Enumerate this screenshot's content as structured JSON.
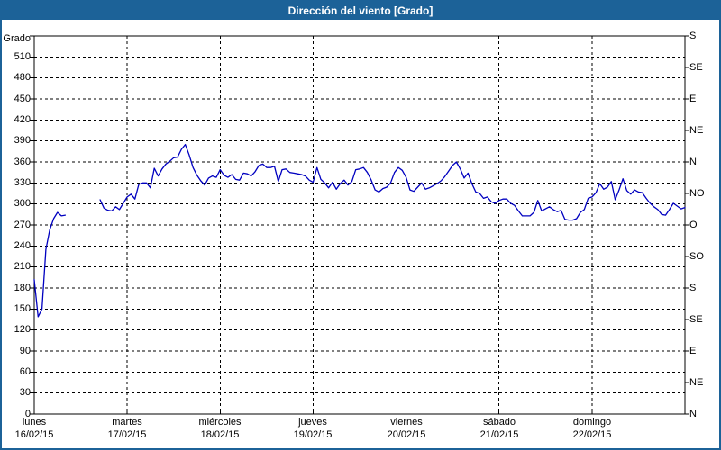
{
  "window": {
    "title": "Dirección del viento [Grado]"
  },
  "colors": {
    "titlebar": "#1c6298",
    "window_border": "#1c6298",
    "background": "#ffffff",
    "grid": "#000000",
    "series_line": "#0000c0",
    "title_text": "#ffffff"
  },
  "chart_data": {
    "type": "line",
    "title": "Dirección del viento [Grado]",
    "grid": "dashed",
    "legend": "none",
    "y_axis_left": {
      "label": "Grado",
      "min": 0,
      "max": 540,
      "tick_step": 30,
      "tick_labels": [
        0,
        30,
        60,
        90,
        120,
        150,
        180,
        210,
        240,
        270,
        300,
        330,
        360,
        390,
        420,
        450,
        480,
        510
      ]
    },
    "y_axis_right": {
      "tick_step": 45,
      "labels": [
        {
          "value": 540,
          "label": "S"
        },
        {
          "value": 495,
          "label": "SE"
        },
        {
          "value": 450,
          "label": "E"
        },
        {
          "value": 405,
          "label": "NE"
        },
        {
          "value": 360,
          "label": "N"
        },
        {
          "value": 315,
          "label": "NO"
        },
        {
          "value": 270,
          "label": "O"
        },
        {
          "value": 225,
          "label": "SO"
        },
        {
          "value": 180,
          "label": "S"
        },
        {
          "value": 135,
          "label": "SE"
        },
        {
          "value": 90,
          "label": "E"
        },
        {
          "value": 45,
          "label": "NE"
        },
        {
          "value": 0,
          "label": "N"
        }
      ]
    },
    "x_axis": {
      "points_per_day": 24,
      "days": [
        {
          "name": "lunes",
          "date": "16/02/15"
        },
        {
          "name": "martes",
          "date": "17/02/15"
        },
        {
          "name": "miércoles",
          "date": "18/02/15"
        },
        {
          "name": "jueves",
          "date": "19/02/15"
        },
        {
          "name": "viernes",
          "date": "20/02/15"
        },
        {
          "name": "sábado",
          "date": "21/02/15"
        },
        {
          "name": "domingo",
          "date": "22/02/15"
        }
      ]
    },
    "series": [
      {
        "name": "Dirección del viento [Grado]",
        "color": "#0000c0",
        "unit": "Grado",
        "values": [
          192,
          139,
          150,
          235,
          263,
          279,
          288,
          283,
          284,
          null,
          null,
          null,
          null,
          null,
          null,
          null,
          null,
          306,
          294,
          291,
          290,
          296,
          292,
          301,
          310,
          314,
          307,
          328,
          330,
          330,
          323,
          351,
          340,
          350,
          357,
          361,
          366,
          367,
          378,
          385,
          370,
          352,
          341,
          333,
          327,
          337,
          340,
          338,
          349,
          341,
          338,
          342,
          335,
          334,
          344,
          343,
          340,
          346,
          355,
          357,
          352,
          352,
          354,
          332,
          349,
          350,
          345,
          344,
          343,
          342,
          340,
          334,
          331,
          352,
          335,
          330,
          323,
          331,
          321,
          329,
          334,
          327,
          332,
          349,
          350,
          352,
          345,
          334,
          320,
          317,
          322,
          324,
          330,
          345,
          352,
          348,
          338,
          320,
          318,
          324,
          330,
          321,
          323,
          326,
          329,
          333,
          339,
          347,
          355,
          360,
          350,
          337,
          344,
          329,
          317,
          315,
          308,
          310,
          303,
          301,
          305,
          307,
          307,
          301,
          298,
          290,
          283,
          283,
          283,
          288,
          305,
          290,
          293,
          296,
          292,
          289,
          291,
          278,
          277,
          277,
          279,
          288,
          292,
          308,
          310,
          316,
          329,
          321,
          324,
          332,
          306,
          320,
          336,
          319,
          314,
          320,
          317,
          316,
          308,
          301,
          296,
          292,
          285,
          284,
          292,
          301,
          297,
          293,
          295
        ]
      }
    ]
  }
}
